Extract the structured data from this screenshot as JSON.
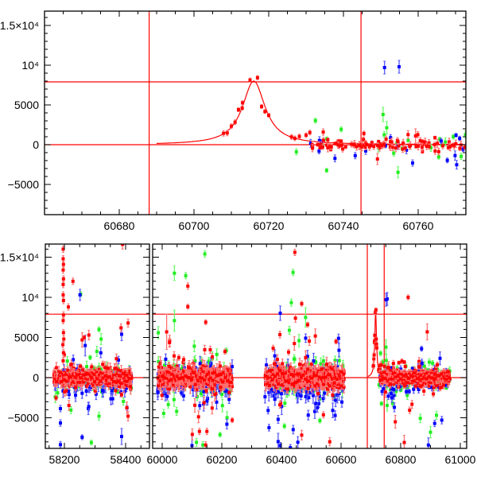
{
  "chart_data": [
    {
      "type": "scatter",
      "panel": "top",
      "title": "",
      "xlabel": "",
      "ylabel": "",
      "xlim": [
        60660,
        60773
      ],
      "ylim": [
        -8800,
        16800
      ],
      "grid": false,
      "x_ticks": [
        {
          "value": 60680,
          "label": "60680"
        },
        {
          "value": 60700,
          "label": "60700"
        },
        {
          "value": 60720,
          "label": "60720"
        },
        {
          "value": 60740,
          "label": "60740"
        },
        {
          "value": 60760,
          "label": "60760"
        }
      ],
      "x_minor_step": 5,
      "y_ticks": [
        {
          "value": -5000,
          "label": "−5000"
        },
        {
          "value": 0,
          "label": "0"
        },
        {
          "value": 5000,
          "label": "5000"
        },
        {
          "value": 10000,
          "label": "10⁴"
        },
        {
          "value": 15000,
          "label": "1.5×10⁴"
        }
      ],
      "y_minor_step": 1000
    },
    {
      "type": "scatter",
      "panel": "bottom",
      "title": "",
      "xlabel": "",
      "ylabel": "",
      "x_break": {
        "left": [
          58136,
          58480
        ],
        "right": [
          59968,
          61021
        ]
      },
      "ylim": [
        -8700,
        16600
      ],
      "grid": false,
      "x_ticks": [
        {
          "value": 58200,
          "label": "58200"
        },
        {
          "value": 58400,
          "label": "58400"
        },
        {
          "value": 60000,
          "label": "60000"
        },
        {
          "value": 60200,
          "label": "60200"
        },
        {
          "value": 60400,
          "label": "60400"
        },
        {
          "value": 60600,
          "label": "60600"
        },
        {
          "value": 60800,
          "label": "60800"
        },
        {
          "value": 61000,
          "label": "61000"
        }
      ],
      "x_minor_step": 50,
      "y_ticks": [
        {
          "value": -5000,
          "label": "−5000"
        },
        {
          "value": 0,
          "label": "0"
        },
        {
          "value": 5000,
          "label": "5000"
        },
        {
          "value": 10000,
          "label": "10⁴"
        },
        {
          "value": 15000,
          "label": "1.5×10⁴"
        }
      ],
      "y_minor_step": 1000
    }
  ],
  "series_colors": {
    "r": "#ff0000",
    "g": "#22ee22",
    "b": "#0000ff"
  },
  "errorbar_colors": {
    "r": "#ff7070",
    "g": "#66ff66",
    "b": "#5555ff"
  },
  "reference_lines": {
    "horizontal": [
      0,
      7900
    ],
    "vertical": [
      60688,
      60744.7
    ]
  },
  "model": {
    "type": "lorentzian",
    "t0": 60716,
    "amplitude": 8000,
    "width": 3.7,
    "t_start": 60690,
    "t_end": 60772
  },
  "points": [
    {
      "band": "r",
      "t": 60707.9,
      "f": 1430,
      "e": 350
    },
    {
      "band": "r",
      "t": 60708.9,
      "f": 1470,
      "e": 350
    },
    {
      "band": "r",
      "t": 60710.0,
      "f": 2330,
      "e": 300
    },
    {
      "band": "r",
      "t": 60711.0,
      "f": 2830,
      "e": 300
    },
    {
      "band": "r",
      "t": 60711.9,
      "f": 4400,
      "e": 250
    },
    {
      "band": "r",
      "t": 60712.9,
      "f": 4600,
      "e": 250
    },
    {
      "band": "r",
      "t": 60713.0,
      "f": 5270,
      "e": 250
    },
    {
      "band": "r",
      "t": 60715.0,
      "f": 8130,
      "e": 250
    },
    {
      "band": "r",
      "t": 60717.0,
      "f": 8430,
      "e": 250
    },
    {
      "band": "r",
      "t": 60718.1,
      "f": 4800,
      "e": 250
    },
    {
      "band": "r",
      "t": 60719.0,
      "f": 4170,
      "e": 250
    },
    {
      "band": "r",
      "t": 60720.0,
      "f": 3700,
      "e": 250
    },
    {
      "band": "r",
      "t": 60726.1,
      "f": 970,
      "e": 300
    },
    {
      "band": "r",
      "t": 60727.0,
      "f": 800,
      "e": 300
    },
    {
      "band": "r",
      "t": 60728.2,
      "f": 1030,
      "e": 300
    },
    {
      "band": "r",
      "t": 60730.0,
      "f": 1200,
      "e": 300
    },
    {
      "band": "r",
      "t": 60731.0,
      "f": 1530,
      "e": 300
    },
    {
      "band": "g",
      "t": 60732.5,
      "f": 3030,
      "e": 300
    },
    {
      "band": "g",
      "t": 60727.4,
      "f": -900,
      "e": 400
    },
    {
      "band": "g",
      "t": 60735.5,
      "f": -3230,
      "e": 250
    },
    {
      "band": "g",
      "t": 60739.4,
      "f": 1930,
      "e": 300
    },
    {
      "band": "b",
      "t": 60754.9,
      "f": 9800,
      "e": 800
    },
    {
      "band": "g",
      "t": 60750.6,
      "f": 3800,
      "e": 900
    },
    {
      "band": "g",
      "t": 60751.6,
      "f": 2130,
      "e": 800
    },
    {
      "band": "g",
      "t": 60754.6,
      "f": -3470,
      "e": 700
    },
    {
      "band": "r",
      "t": 60749.1,
      "f": -1800,
      "e": 700
    },
    {
      "band": "r",
      "t": 60759.3,
      "f": 1100,
      "e": 900
    },
    {
      "band": "r",
      "t": 60757.3,
      "f": 1270,
      "e": 500
    },
    {
      "band": "b",
      "t": 60767.8,
      "f": -1970,
      "e": 300
    },
    {
      "band": "g",
      "t": 60765.5,
      "f": -1530,
      "e": 300
    },
    {
      "band": "g",
      "t": 60769.4,
      "f": 1000,
      "e": 300
    },
    {
      "band": "g",
      "t": 60771.5,
      "f": -1470,
      "e": 400
    },
    {
      "band": "r",
      "t": 58196,
      "f": 16000,
      "e": 400
    },
    {
      "band": "r",
      "t": 58196,
      "f": 14800,
      "e": 400
    },
    {
      "band": "r",
      "t": 58197,
      "f": 14100,
      "e": 400
    },
    {
      "band": "r",
      "t": 58196,
      "f": 13400,
      "e": 400
    },
    {
      "band": "r",
      "t": 58197,
      "f": 12300,
      "e": 400
    },
    {
      "band": "r",
      "t": 58196,
      "f": 11600,
      "e": 400
    },
    {
      "band": "r",
      "t": 58196,
      "f": 10300,
      "e": 400
    },
    {
      "band": "r",
      "t": 58197,
      "f": 9600,
      "e": 400
    },
    {
      "band": "r",
      "t": 58213,
      "f": 8800,
      "e": 400
    },
    {
      "band": "r",
      "t": 58197,
      "f": 7800,
      "e": 400
    },
    {
      "band": "r",
      "t": 58196,
      "f": 7100,
      "e": 400
    },
    {
      "band": "r",
      "t": 58197,
      "f": 5600,
      "e": 400
    },
    {
      "band": "r",
      "t": 58198,
      "f": 4800,
      "e": 400
    },
    {
      "band": "r",
      "t": 58195,
      "f": 4100,
      "e": 400
    },
    {
      "band": "r",
      "t": 58197,
      "f": 3100,
      "e": 400
    },
    {
      "band": "r",
      "t": 58196,
      "f": 2100,
      "e": 400
    },
    {
      "band": "r",
      "t": 58228,
      "f": 12000,
      "e": 400
    },
    {
      "band": "b",
      "t": 58251,
      "f": 10300,
      "e": 700
    },
    {
      "band": "g",
      "t": 58253,
      "f": 10400,
      "e": 300
    },
    {
      "band": "b",
      "t": 58187,
      "f": -3860,
      "e": 400
    },
    {
      "band": "b",
      "t": 58187,
      "f": -5650,
      "e": 400
    },
    {
      "band": "b",
      "t": 58187,
      "f": -8350,
      "e": 400
    },
    {
      "band": "b",
      "t": 58258,
      "f": -7420,
      "e": 300
    },
    {
      "band": "g",
      "t": 58288,
      "f": -8080,
      "e": 300
    },
    {
      "band": "g",
      "t": 58313,
      "f": -4800,
      "e": 500
    },
    {
      "band": "r",
      "t": 58390,
      "f": 16600,
      "e": 600
    },
    {
      "band": "r",
      "t": 58408,
      "f": 6800,
      "e": 500
    },
    {
      "band": "r",
      "t": 58408,
      "f": -4800,
      "e": 600
    },
    {
      "band": "b",
      "t": 58387,
      "f": -7330,
      "e": 1000
    },
    {
      "band": "b",
      "t": 58387,
      "f": 5400,
      "e": 800
    },
    {
      "band": "r",
      "t": 58385,
      "f": 6200,
      "e": 500
    },
    {
      "band": "g",
      "t": 58313,
      "f": 6000,
      "e": 300
    },
    {
      "band": "g",
      "t": 58320,
      "f": 4800,
      "e": 700
    },
    {
      "band": "b",
      "t": 58268,
      "f": 4000,
      "e": 1300
    },
    {
      "band": "r",
      "t": 58258,
      "f": 4700,
      "e": 900
    },
    {
      "band": "r",
      "t": 58265,
      "f": 5000,
      "e": 300
    },
    {
      "band": "r",
      "t": 58280,
      "f": 5300,
      "e": 600
    },
    {
      "band": "g",
      "t": 60143,
      "f": 15400,
      "e": 400
    },
    {
      "band": "g",
      "t": 60041,
      "f": 13000,
      "e": 900
    },
    {
      "band": "g",
      "t": 60079,
      "f": 12700,
      "e": 400
    },
    {
      "band": "r",
      "t": 60086,
      "f": 11400,
      "e": 400
    },
    {
      "band": "r",
      "t": 60086,
      "f": 8840,
      "e": 300
    },
    {
      "band": "r",
      "t": 60015,
      "f": 5700,
      "e": 2200
    },
    {
      "band": "g",
      "t": 60041,
      "f": 7100,
      "e": 1300
    },
    {
      "band": "r",
      "t": 60146,
      "f": 6900,
      "e": 300
    },
    {
      "band": "b",
      "t": 60396,
      "f": 8020,
      "e": 900
    },
    {
      "band": "r",
      "t": 60445,
      "f": 15600,
      "e": 400
    },
    {
      "band": "g",
      "t": 60439,
      "f": 13100,
      "e": 400
    },
    {
      "band": "r",
      "t": 60468,
      "f": 9200,
      "e": 300
    },
    {
      "band": "r",
      "t": 60447,
      "f": 7400,
      "e": 500
    },
    {
      "band": "g",
      "t": 60481,
      "f": 7500,
      "e": 1200
    },
    {
      "band": "r",
      "t": 60488,
      "f": 6600,
      "e": 300
    },
    {
      "band": "r",
      "t": 60583,
      "f": 4500,
      "e": 300
    },
    {
      "band": "b",
      "t": 60751,
      "f": 9700,
      "e": 800
    },
    {
      "band": "r",
      "t": 60825,
      "f": 10000,
      "e": 300
    },
    {
      "band": "r",
      "t": 60889,
      "f": 5700,
      "e": 1000
    },
    {
      "band": "b",
      "t": 60870,
      "f": 3600,
      "e": 300
    },
    {
      "band": "b",
      "t": 60932,
      "f": 2400,
      "e": 800
    },
    {
      "band": "g",
      "t": 60005,
      "f": -4460,
      "e": 500
    },
    {
      "band": "b",
      "t": 60100,
      "f": -8460,
      "e": 1500
    },
    {
      "band": "r",
      "t": 60101,
      "f": -7070,
      "e": 700
    },
    {
      "band": "r",
      "t": 60146,
      "f": -8390,
      "e": 400
    },
    {
      "band": "r",
      "t": 60125,
      "f": -6700,
      "e": 400
    },
    {
      "band": "r",
      "t": 60150,
      "f": -6700,
      "e": 400
    },
    {
      "band": "g",
      "t": 60194,
      "f": -7100,
      "e": 300
    },
    {
      "band": "b",
      "t": 60217,
      "f": -5800,
      "e": 600
    },
    {
      "band": "r",
      "t": 60235,
      "f": -5300,
      "e": 300
    },
    {
      "band": "g",
      "t": 60115,
      "f": -8060,
      "e": 500
    },
    {
      "band": "b",
      "t": 60396,
      "f": -8470,
      "e": 400
    },
    {
      "band": "b",
      "t": 60430,
      "f": -8730,
      "e": 400
    },
    {
      "band": "b",
      "t": 60389,
      "f": -5200,
      "e": 500
    },
    {
      "band": "g",
      "t": 60410,
      "f": -6030,
      "e": 300
    },
    {
      "band": "r",
      "t": 60468,
      "f": -7160,
      "e": 600
    },
    {
      "band": "b",
      "t": 60455,
      "f": -8050,
      "e": 700
    },
    {
      "band": "r",
      "t": 60562,
      "f": -7990,
      "e": 500
    },
    {
      "band": "g",
      "t": 60529,
      "f": -5350,
      "e": 300
    },
    {
      "band": "b",
      "t": 60490,
      "f": -4670,
      "e": 600
    },
    {
      "band": "r",
      "t": 60812,
      "f": -8080,
      "e": 900
    },
    {
      "band": "r",
      "t": 60782,
      "f": -5500,
      "e": 800
    },
    {
      "band": "b",
      "t": 60893,
      "f": -8400,
      "e": 900
    },
    {
      "band": "g",
      "t": 60900,
      "f": -6800,
      "e": 700
    },
    {
      "band": "b",
      "t": 60914,
      "f": -5700,
      "e": 400
    },
    {
      "band": "g",
      "t": 60920,
      "f": -4690,
      "e": 500
    },
    {
      "band": "g",
      "t": 60773,
      "f": -3200,
      "e": 400
    },
    {
      "band": "r",
      "t": 60830,
      "f": -4060,
      "e": 400
    }
  ],
  "noise_clusters": [
    {
      "band": "g",
      "t_start": 58165,
      "t_end": 58420,
      "n": 80,
      "mean": -100,
      "sigma": 900,
      "err": 500
    },
    {
      "band": "b",
      "t_start": 58165,
      "t_end": 58420,
      "n": 80,
      "mean": -400,
      "sigma": 1100,
      "err": 600
    },
    {
      "band": "r",
      "t_start": 58165,
      "t_end": 58420,
      "n": 350,
      "mean": 0,
      "sigma": 450,
      "err": 500
    },
    {
      "band": "g",
      "t_start": 59985,
      "t_end": 60235,
      "n": 120,
      "mean": 0,
      "sigma": 1000,
      "err": 600
    },
    {
      "band": "b",
      "t_start": 59985,
      "t_end": 60235,
      "n": 120,
      "mean": -400,
      "sigma": 1100,
      "err": 600
    },
    {
      "band": "r",
      "t_start": 59985,
      "t_end": 60235,
      "n": 500,
      "mean": 0,
      "sigma": 550,
      "err": 600
    },
    {
      "band": "g",
      "t_start": 60345,
      "t_end": 60610,
      "n": 120,
      "mean": 0,
      "sigma": 1100,
      "err": 600
    },
    {
      "band": "b",
      "t_start": 60345,
      "t_end": 60610,
      "n": 150,
      "mean": -800,
      "sigma": 1400,
      "err": 700
    },
    {
      "band": "r",
      "t_start": 60345,
      "t_end": 60610,
      "n": 500,
      "mean": 0,
      "sigma": 550,
      "err": 600
    },
    {
      "band": "g",
      "t_start": 60730,
      "t_end": 60965,
      "n": 100,
      "mean": 0,
      "sigma": 900,
      "err": 400
    },
    {
      "band": "b",
      "t_start": 60730,
      "t_end": 60965,
      "n": 100,
      "mean": -300,
      "sigma": 900,
      "err": 400
    },
    {
      "band": "r",
      "t_start": 60730,
      "t_end": 60965,
      "n": 500,
      "mean": 0,
      "sigma": 380,
      "err": 350
    }
  ]
}
